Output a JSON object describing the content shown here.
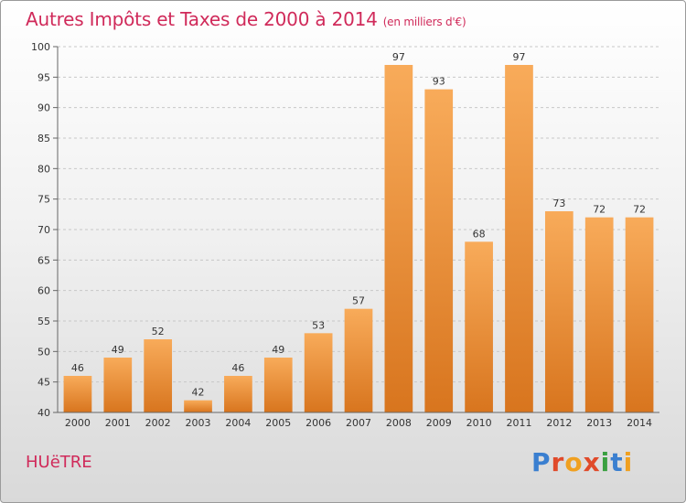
{
  "title": "Autres Impôts et Taxes de 2000 à 2014",
  "subtitle": "(en milliers d'€)",
  "location": "HUëTRE",
  "logo": {
    "text": "Proxiti",
    "letter_colors": [
      "#3a7fd0",
      "#e04a2a",
      "#f0a020",
      "#e04a2a",
      "#3aa040",
      "#3a7fd0",
      "#f0a020"
    ]
  },
  "colors": {
    "bar_light": "#f8ab5a",
    "bar_dark": "#d8751e",
    "title": "#d02a5a"
  },
  "chart_data": {
    "type": "bar",
    "categories": [
      "2000",
      "2001",
      "2002",
      "2003",
      "2004",
      "2005",
      "2006",
      "2007",
      "2008",
      "2009",
      "2010",
      "2011",
      "2012",
      "2013",
      "2014"
    ],
    "values": [
      46,
      49,
      52,
      42,
      46,
      49,
      53,
      57,
      97,
      93,
      68,
      97,
      73,
      72,
      72
    ],
    "ylim": [
      40,
      100
    ],
    "yticks": [
      40,
      45,
      50,
      55,
      60,
      65,
      70,
      75,
      80,
      85,
      90,
      95,
      100
    ],
    "grid": true
  }
}
